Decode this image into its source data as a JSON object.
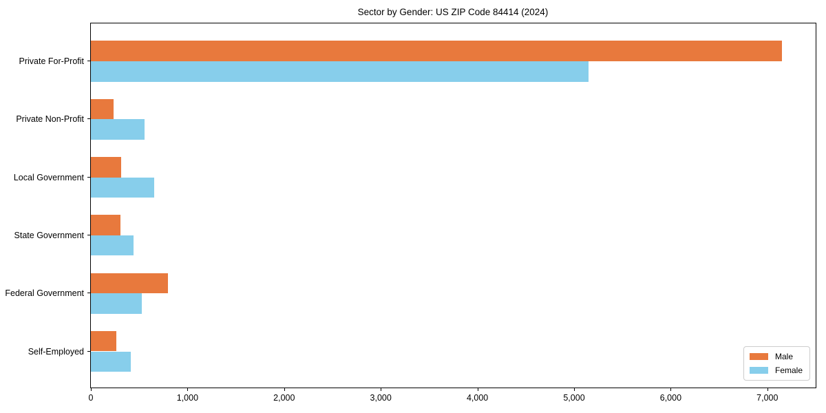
{
  "chart_data": {
    "type": "bar",
    "orientation": "horizontal",
    "title": "Sector by Gender: US ZIP Code 84414 (2024)",
    "categories": [
      "Private For-Profit",
      "Private Non-Profit",
      "Local Government",
      "State Government",
      "Federal Government",
      "Self-Employed"
    ],
    "series": [
      {
        "name": "Male",
        "color": "#E8793D",
        "values": [
          7150,
          235,
          315,
          305,
          800,
          265
        ]
      },
      {
        "name": "Female",
        "color": "#87CEEB",
        "values": [
          5150,
          555,
          655,
          440,
          525,
          415
        ]
      }
    ],
    "xlabel": "",
    "ylabel": "",
    "xlim": [
      0,
      7500
    ],
    "x_ticks": [
      0,
      1000,
      2000,
      3000,
      4000,
      5000,
      6000,
      7000
    ],
    "x_tick_labels": [
      "0",
      "1,000",
      "2,000",
      "3,000",
      "4,000",
      "5,000",
      "6,000",
      "7,000"
    ],
    "grid": false,
    "legend": {
      "position": "lower right",
      "labels": [
        "Male",
        "Female"
      ]
    }
  },
  "colors": {
    "background": "#FFFFFF",
    "spine": "#000000",
    "male": "#E8793D",
    "female": "#87CEEB",
    "legend_border": "#CCCCCC"
  }
}
